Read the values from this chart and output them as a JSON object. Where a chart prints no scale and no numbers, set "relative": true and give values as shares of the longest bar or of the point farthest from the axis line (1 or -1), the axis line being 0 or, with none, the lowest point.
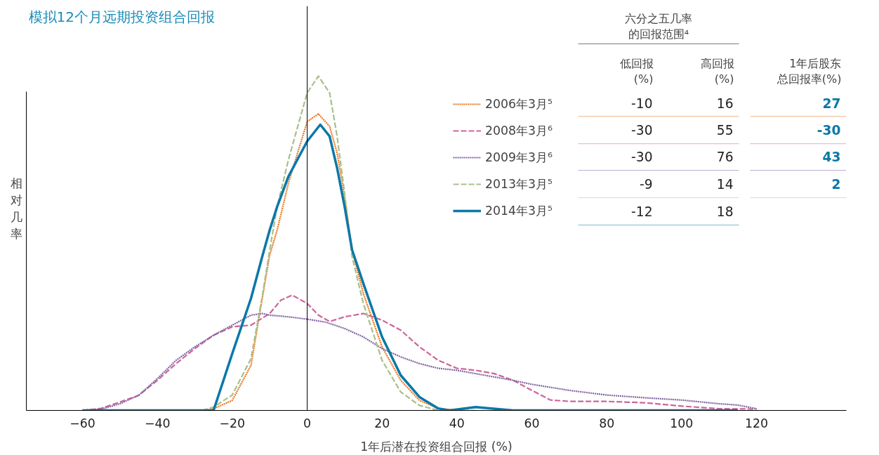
{
  "chart_data": {
    "type": "line",
    "title": "模拟12个月远期投资组合回报",
    "xlabel": "1年后潜在投资组合回报 (%)",
    "ylabel": "相对几率",
    "relative": true,
    "xlim": [
      -75,
      144
    ],
    "xticks": [
      -60,
      -40,
      -20,
      0,
      20,
      40,
      60,
      80,
      100,
      120
    ],
    "grid": false,
    "legend": "top right",
    "ref_lines": [
      {
        "axis": "x",
        "value": 0,
        "color": "#000000"
      }
    ],
    "series": [
      {
        "name": "2006年3月⁵",
        "color": "#e87722",
        "line_style": "dotted",
        "x": [
          -27,
          -25,
          -20,
          -15,
          -12,
          -10,
          -8,
          -5,
          0,
          3,
          6,
          8,
          10,
          12,
          15,
          20,
          25,
          30,
          35,
          40
        ],
        "values": [
          0,
          0.005,
          0.03,
          0.135,
          0.335,
          0.465,
          0.54,
          0.68,
          0.864,
          0.887,
          0.85,
          0.77,
          0.64,
          0.48,
          0.35,
          0.19,
          0.09,
          0.03,
          0.006,
          0
        ]
      },
      {
        "name": "2008年3月⁶",
        "color": "#cc6699",
        "line_style": "dashed",
        "x": [
          -60,
          -55,
          -50,
          -45,
          -40,
          -35,
          -30,
          -25,
          -20,
          -15,
          -10,
          -7,
          -4,
          0,
          3,
          6,
          10,
          15,
          20,
          25,
          30,
          35,
          40,
          45,
          50,
          55,
          60,
          65,
          70,
          80,
          90,
          100,
          110,
          120
        ],
        "values": [
          0,
          0.006,
          0.025,
          0.045,
          0.09,
          0.14,
          0.185,
          0.225,
          0.25,
          0.255,
          0.29,
          0.33,
          0.345,
          0.32,
          0.285,
          0.266,
          0.28,
          0.29,
          0.27,
          0.24,
          0.19,
          0.15,
          0.126,
          0.12,
          0.11,
          0.09,
          0.06,
          0.031,
          0.027,
          0.027,
          0.023,
          0.013,
          0.005,
          0.004
        ]
      },
      {
        "name": "2009年3月⁶",
        "color": "#8064a2",
        "line_style": "dotted",
        "x": [
          -60,
          -55,
          -50,
          -45,
          -40,
          -35,
          -30,
          -25,
          -20,
          -15,
          -12,
          -10,
          -5,
          0,
          5,
          10,
          15,
          20,
          25,
          30,
          35,
          40,
          45,
          50,
          55,
          60,
          70,
          80,
          90,
          100,
          110,
          115,
          120
        ],
        "values": [
          0,
          0.004,
          0.02,
          0.045,
          0.095,
          0.15,
          0.19,
          0.225,
          0.255,
          0.285,
          0.29,
          0.285,
          0.28,
          0.273,
          0.264,
          0.245,
          0.22,
          0.185,
          0.16,
          0.14,
          0.126,
          0.12,
          0.11,
          0.1,
          0.09,
          0.078,
          0.06,
          0.046,
          0.038,
          0.031,
          0.02,
          0.016,
          0.005
        ]
      },
      {
        "name": "2013年3月⁵",
        "color": "#a9bf8a",
        "line_style": "dashed",
        "x": [
          -28,
          -25,
          -20,
          -15,
          -12,
          -10,
          -8,
          -5,
          0,
          3,
          6,
          8,
          10,
          12,
          15,
          20,
          25,
          30,
          35,
          40,
          45
        ],
        "values": [
          0,
          0.01,
          0.046,
          0.155,
          0.34,
          0.48,
          0.61,
          0.75,
          0.95,
          1,
          0.95,
          0.82,
          0.65,
          0.46,
          0.32,
          0.15,
          0.055,
          0.015,
          0,
          0,
          0
        ]
      },
      {
        "name": "2014年3月⁵",
        "color": "#0a78a8",
        "line_style": "solid",
        "x": [
          -60,
          -45,
          -35,
          -25,
          -20,
          -15,
          -12,
          -10,
          -8,
          -5,
          0,
          3.5,
          6,
          8,
          10,
          12,
          15,
          20,
          25,
          30,
          35,
          38,
          45,
          55,
          80,
          115
        ],
        "values": [
          0,
          0,
          0,
          0,
          0.17,
          0.335,
          0.46,
          0.54,
          0.61,
          0.7,
          0.805,
          0.855,
          0.82,
          0.725,
          0.61,
          0.48,
          0.38,
          0.22,
          0.105,
          0.04,
          0.006,
          0,
          0.01,
          0,
          0,
          0
        ]
      }
    ],
    "annotations": [
      "六分之五几率的回报范围⁴",
      "低回报(%)",
      "高回报(%)",
      "1年后股东总回报率(%)",
      "-10",
      "16",
      "27",
      "-30",
      "55",
      "-30",
      "-30",
      "76",
      "43",
      "-9",
      "14",
      "2",
      "-12",
      "18"
    ]
  }
}
